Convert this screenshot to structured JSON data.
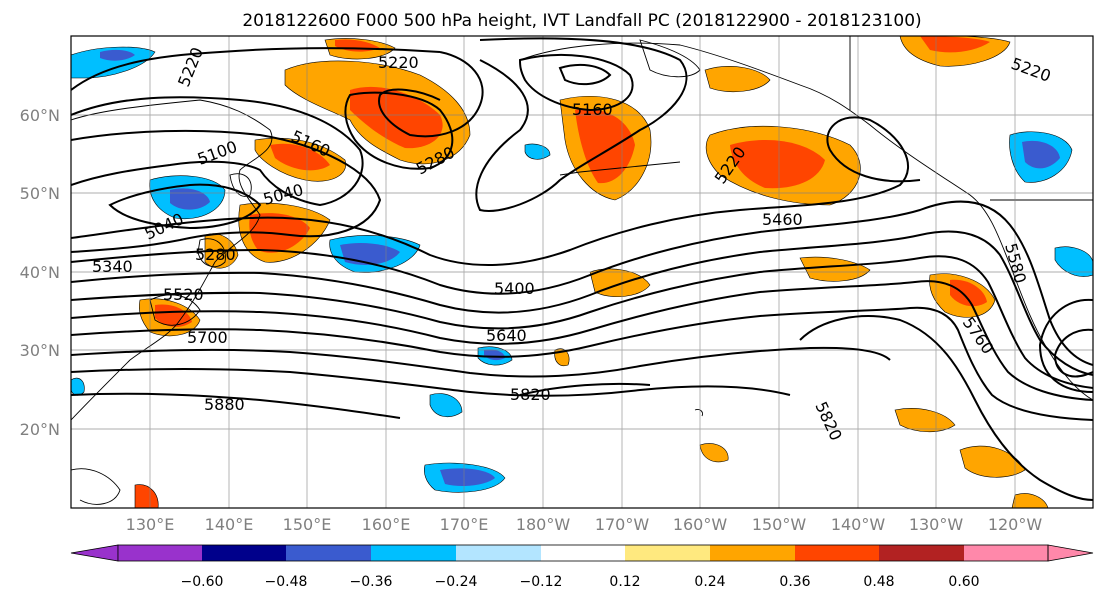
{
  "title": "2018122600 F000 500 hPa height, IVT Landfall PC (2018122900 - 2018123100)",
  "lat_labels": [
    "60°N",
    "50°N",
    "40°N",
    "30°N",
    "20°N"
  ],
  "lat_values": [
    60,
    50,
    40,
    30,
    20
  ],
  "lon_labels": [
    "130°E",
    "140°E",
    "150°E",
    "160°E",
    "170°E",
    "180°W",
    "170°W",
    "160°W",
    "150°W",
    "140°W",
    "130°W",
    "120°W"
  ],
  "lon_values": [
    130,
    140,
    150,
    160,
    170,
    180,
    190,
    200,
    210,
    220,
    230,
    240
  ],
  "colorbar": {
    "ticks": [
      "−0.60",
      "−0.48",
      "−0.36",
      "−0.24",
      "−0.12",
      "0.12",
      "0.24",
      "0.36",
      "0.48",
      "0.60"
    ],
    "colors": [
      "#9932cc",
      "#00008b",
      "#3a5bcf",
      "#00bfff",
      "#b3e5ff",
      "#ffffff",
      "#ffe97f",
      "#ffa500",
      "#ff4500",
      "#b22222",
      "#ff88aa"
    ]
  },
  "contour_labels": [
    "5220",
    "5220",
    "5220",
    "5160",
    "5100",
    "5160",
    "5280",
    "5220",
    "5040",
    "5040",
    "5340",
    "5280",
    "5460",
    "5520",
    "5400",
    "5580",
    "5700",
    "5640",
    "5760",
    "5820",
    "5880",
    "5820"
  ],
  "colors": {
    "positive_fill": "#ffa500",
    "strong_positive": "#ff4500",
    "negative_fill": "#00bfff",
    "strong_negative": "#3a5bcf",
    "contour": "#000000",
    "grid": "#808080"
  }
}
